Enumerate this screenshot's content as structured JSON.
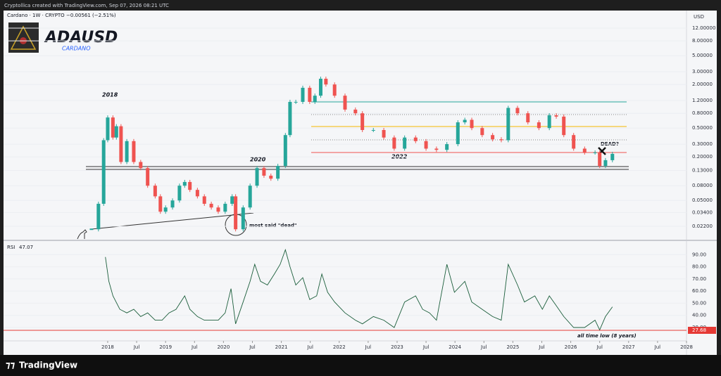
{
  "header": {
    "watermark": "Cryptollica created with TradingView.com, Sep 07, 2026 08:21 UTC",
    "symbol_info": "Cardano · 1W · CRYPTO",
    "change": "−0.00561 (−2.51%)",
    "title": "ADAUSD",
    "subtitle": "CARDANO",
    "currency": "USD"
  },
  "annotations": {
    "a2018": "2018",
    "a2020": "2020",
    "a2022": "2022",
    "dead_q": "DEAD?",
    "most_said": "most said \"dead\"",
    "atl": "all time low (8 years)"
  },
  "chart_data": [
    {
      "type": "candlestick",
      "title": "ADAUSD",
      "log_scale": true,
      "up_color": "#26a69a",
      "down_color": "#ef5350",
      "x": [
        2017.72,
        2017.84,
        2017.93,
        2018.0,
        2018.09,
        2018.15,
        2018.23,
        2018.33,
        2018.45,
        2018.57,
        2018.69,
        2018.82,
        2018.91,
        2019.0,
        2019.12,
        2019.24,
        2019.33,
        2019.42,
        2019.55,
        2019.67,
        2019.79,
        2019.91,
        2020.03,
        2020.15,
        2020.21,
        2020.34,
        2020.46,
        2020.58,
        2020.7,
        2020.82,
        2020.94,
        2021.07,
        2021.15,
        2021.25,
        2021.37,
        2021.49,
        2021.58,
        2021.68,
        2021.77,
        2021.92,
        2022.1,
        2022.28,
        2022.4,
        2022.59,
        2022.77,
        2022.95,
        2023.13,
        2023.32,
        2023.5,
        2023.68,
        2023.86,
        2024.05,
        2024.17,
        2024.29,
        2024.47,
        2024.65,
        2024.8,
        2024.92,
        2025.08,
        2025.26,
        2025.45,
        2025.63,
        2025.75,
        2025.88,
        2026.05,
        2026.24,
        2026.42,
        2026.5,
        2026.6,
        2026.72
      ],
      "values": [
        0.02,
        0.045,
        0.34,
        0.7,
        0.37,
        0.53,
        0.17,
        0.33,
        0.17,
        0.14,
        0.08,
        0.057,
        0.035,
        0.04,
        0.05,
        0.08,
        0.09,
        0.07,
        0.057,
        0.045,
        0.04,
        0.035,
        0.045,
        0.057,
        0.02,
        0.04,
        0.08,
        0.14,
        0.11,
        0.1,
        0.15,
        0.4,
        1.15,
        1.15,
        1.8,
        1.15,
        1.4,
        2.4,
        2.0,
        1.4,
        0.9,
        0.8,
        0.47,
        0.47,
        0.37,
        0.26,
        0.37,
        0.33,
        0.26,
        0.25,
        0.3,
        0.6,
        0.65,
        0.5,
        0.4,
        0.35,
        0.34,
        0.95,
        0.8,
        0.6,
        0.5,
        0.75,
        0.72,
        0.4,
        0.26,
        0.23,
        0.23,
        0.15,
        0.18,
        0.22
      ],
      "xlim": [
        2016.2,
        2028.0
      ],
      "ylim": [
        0.0147,
        21
      ],
      "yticks": [
        {
          "value": 12,
          "label": "12.00000"
        },
        {
          "value": 8,
          "label": "8.00000"
        },
        {
          "value": 5,
          "label": "5.00000"
        },
        {
          "value": 3,
          "label": "3.00000"
        },
        {
          "value": 2,
          "label": "2.00000"
        },
        {
          "value": 1.2,
          "label": "1.20000"
        },
        {
          "value": 0.8,
          "label": "0.80000"
        },
        {
          "value": 0.5,
          "label": "0.50000"
        },
        {
          "value": 0.3,
          "label": "0.30000"
        },
        {
          "value": 0.2,
          "label": "0.20000"
        },
        {
          "value": 0.13,
          "label": "0.13000"
        },
        {
          "value": 0.08,
          "label": "0.08000"
        },
        {
          "value": 0.05,
          "label": "0.05000"
        },
        {
          "value": 0.034,
          "label": "0.03400"
        },
        {
          "value": 0.022,
          "label": "0.02200"
        }
      ]
    },
    {
      "type": "line",
      "title": "RSI",
      "last_value": 47.07,
      "color": "#1b5e3b",
      "x": [
        2017.96,
        2018.02,
        2018.09,
        2018.21,
        2018.33,
        2018.45,
        2018.57,
        2018.69,
        2018.82,
        2018.94,
        2019.06,
        2019.18,
        2019.33,
        2019.42,
        2019.55,
        2019.67,
        2019.79,
        2019.91,
        2020.03,
        2020.13,
        2020.21,
        2020.34,
        2020.46,
        2020.54,
        2020.64,
        2020.76,
        2020.88,
        2020.98,
        2021.07,
        2021.15,
        2021.25,
        2021.37,
        2021.49,
        2021.61,
        2021.7,
        2021.8,
        2021.92,
        2022.1,
        2022.28,
        2022.4,
        2022.59,
        2022.77,
        2022.95,
        2023.13,
        2023.32,
        2023.44,
        2023.56,
        2023.68,
        2023.86,
        2023.99,
        2024.17,
        2024.29,
        2024.47,
        2024.65,
        2024.8,
        2024.92,
        2025.08,
        2025.2,
        2025.38,
        2025.51,
        2025.63,
        2025.75,
        2025.88,
        2026.05,
        2026.24,
        2026.42,
        2026.5,
        2026.6,
        2026.72
      ],
      "values": [
        88,
        68,
        56,
        45,
        42,
        45,
        39,
        42,
        36,
        36,
        42,
        45,
        56,
        45,
        39,
        36,
        36,
        36,
        42,
        62,
        33,
        51,
        68,
        82,
        68,
        65,
        74,
        82,
        94,
        80,
        65,
        71,
        53,
        56,
        74,
        59,
        51,
        42,
        36,
        33,
        39,
        36,
        30,
        51,
        56,
        45,
        42,
        36,
        82,
        59,
        68,
        51,
        45,
        39,
        36,
        82,
        65,
        51,
        56,
        45,
        56,
        48,
        39,
        30,
        30,
        36,
        28,
        39,
        47
      ],
      "hline": {
        "value": 27.68,
        "label": "27.68",
        "color": "#e53935"
      },
      "xlim": [
        2016.2,
        2028.0
      ],
      "ylim": [
        19,
        100
      ],
      "yticks": [
        {
          "value": 90,
          "label": "90.00"
        },
        {
          "value": 80,
          "label": "80.00"
        },
        {
          "value": 70,
          "label": "70.00"
        },
        {
          "value": 60,
          "label": "60.00"
        },
        {
          "value": 50,
          "label": "50.00"
        },
        {
          "value": 40,
          "label": "40.00"
        },
        {
          "value": 30,
          "label": "30.00"
        }
      ],
      "xticks": [
        2018,
        {
          "value": 2018.5,
          "label": "Jul"
        },
        2019,
        {
          "value": 2019.5,
          "label": "Jul"
        },
        2020,
        {
          "value": 2020.5,
          "label": "Jul"
        },
        2021,
        {
          "value": 2021.5,
          "label": "Jul"
        },
        2022,
        {
          "value": 2022.5,
          "label": "Jul"
        },
        2023,
        {
          "value": 2023.5,
          "label": "Jul"
        },
        2024,
        {
          "value": 2024.5,
          "label": "Jul"
        },
        2025,
        {
          "value": 2025.5,
          "label": "Jul"
        },
        2026,
        {
          "value": 2026.5,
          "label": "Jul"
        },
        2027,
        {
          "value": 2027.5,
          "label": "Jul"
        },
        2028
      ]
    }
  ],
  "footer": {
    "brand": "TradingView"
  }
}
